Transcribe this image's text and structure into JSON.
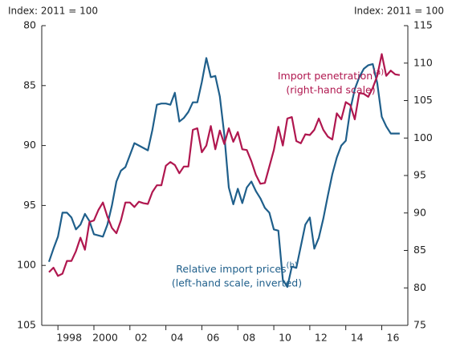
{
  "chart_data": {
    "type": "line",
    "y_label": "Index:  2011 = 100",
    "y2_label": "Index:  2011 = 100",
    "annotations": [
      {
        "text": "Import penetration",
        "sup": "(a)",
        "text2": "(right-hand scale)",
        "color": "#b0174f"
      },
      {
        "text": "Relative import prices",
        "sup": "(b)",
        "text2": "(left-hand scale, inverted)",
        "color": "#1f5f8b"
      }
    ],
    "xlim": [
      1997.1,
      2017.45
    ],
    "xticks": [
      1998,
      {
        "value": 2000,
        "label": "2000"
      },
      {
        "value": 2002,
        "label": "02"
      },
      {
        "value": 2004,
        "label": "04"
      },
      {
        "value": 2006,
        "label": "06"
      },
      {
        "value": 2008,
        "label": "08"
      },
      {
        "value": 2010,
        "label": "10"
      },
      {
        "value": 2012,
        "label": "12"
      },
      {
        "value": 2014,
        "label": "14"
      },
      {
        "value": 2016,
        "label": "16"
      }
    ],
    "ylim": [
      80,
      105
    ],
    "y_inverted": true,
    "yticks": [
      80,
      85,
      90,
      95,
      100,
      105
    ],
    "y2lim": [
      75,
      115
    ],
    "y2ticks": [
      75,
      80,
      85,
      90,
      95,
      100,
      105,
      110,
      115
    ],
    "x": [
      1997.5,
      1997.75,
      1998,
      1998.25,
      1998.5,
      1998.75,
      1999,
      1999.25,
      1999.5,
      1999.75,
      2000,
      2000.25,
      2000.5,
      2000.75,
      2001,
      2001.25,
      2001.5,
      2001.75,
      2002,
      2002.25,
      2002.5,
      2002.75,
      2003,
      2003.25,
      2003.5,
      2003.75,
      2004,
      2004.25,
      2004.5,
      2004.75,
      2005,
      2005.25,
      2005.5,
      2005.75,
      2006,
      2006.25,
      2006.5,
      2006.75,
      2007,
      2007.25,
      2007.5,
      2007.75,
      2008,
      2008.25,
      2008.5,
      2008.75,
      2009,
      2009.25,
      2009.5,
      2009.75,
      2010,
      2010.25,
      2010.5,
      2010.75,
      2011,
      2011.25,
      2011.5,
      2011.75,
      2012,
      2012.25,
      2012.5,
      2012.75,
      2013,
      2013.25,
      2013.5,
      2013.75,
      2014,
      2014.25,
      2014.5,
      2014.75,
      2015,
      2015.25,
      2015.5,
      2015.75,
      2016,
      2016.25,
      2016.5,
      2016.75,
      2017
    ],
    "series": [
      {
        "name": "Relative import prices",
        "color": "#1f5f8b",
        "axis": "y",
        "values": [
          99.7,
          98.6,
          97.6,
          95.6,
          95.6,
          96.0,
          97.0,
          96.6,
          95.7,
          96.3,
          97.4,
          97.5,
          97.6,
          96.6,
          95.0,
          93.0,
          92.1,
          91.8,
          90.8,
          89.8,
          90.0,
          90.2,
          90.4,
          88.7,
          86.6,
          86.5,
          86.5,
          86.6,
          85.6,
          88.0,
          87.7,
          87.2,
          86.4,
          86.4,
          84.7,
          82.7,
          84.3,
          84.2,
          85.9,
          89.1,
          93.5,
          94.9,
          93.6,
          94.8,
          93.5,
          93.0,
          93.8,
          94.4,
          95.2,
          95.6,
          97.0,
          97.1,
          101.2,
          101.8,
          100.1,
          100.2,
          98.4,
          96.6,
          96.0,
          98.6,
          97.7,
          96.1,
          94.2,
          92.4,
          91.0,
          90.0,
          89.6,
          87.0,
          85.3,
          84.3,
          83.6,
          83.3,
          83.2,
          84.8,
          87.6,
          88.4,
          89.0,
          89.0,
          89.0
        ]
      },
      {
        "name": "Import penetration",
        "color": "#b0174f",
        "axis": "y2",
        "values": [
          82.1,
          82.7,
          81.6,
          81.9,
          83.6,
          83.6,
          84.9,
          86.7,
          85.1,
          88.8,
          89.0,
          90.4,
          91.4,
          89.5,
          88.0,
          87.3,
          89.0,
          91.4,
          91.4,
          90.8,
          91.5,
          91.3,
          91.2,
          92.8,
          93.7,
          93.7,
          96.3,
          96.8,
          96.4,
          95.3,
          96.2,
          96.2,
          101.1,
          101.3,
          98.1,
          99.0,
          101.6,
          98.5,
          101.0,
          99.2,
          101.3,
          99.5,
          100.8,
          98.5,
          98.4,
          96.9,
          95.1,
          93.9,
          94.0,
          96.2,
          98.4,
          101.5,
          99.0,
          102.6,
          102.8,
          99.6,
          99.3,
          100.5,
          100.4,
          101.1,
          102.6,
          101.1,
          100.2,
          99.8,
          103.3,
          102.5,
          104.8,
          104.4,
          102.5,
          106.0,
          105.9,
          105.5,
          106.7,
          108.3,
          111.2,
          108.3,
          109.0,
          108.5,
          108.4
        ]
      }
    ]
  }
}
